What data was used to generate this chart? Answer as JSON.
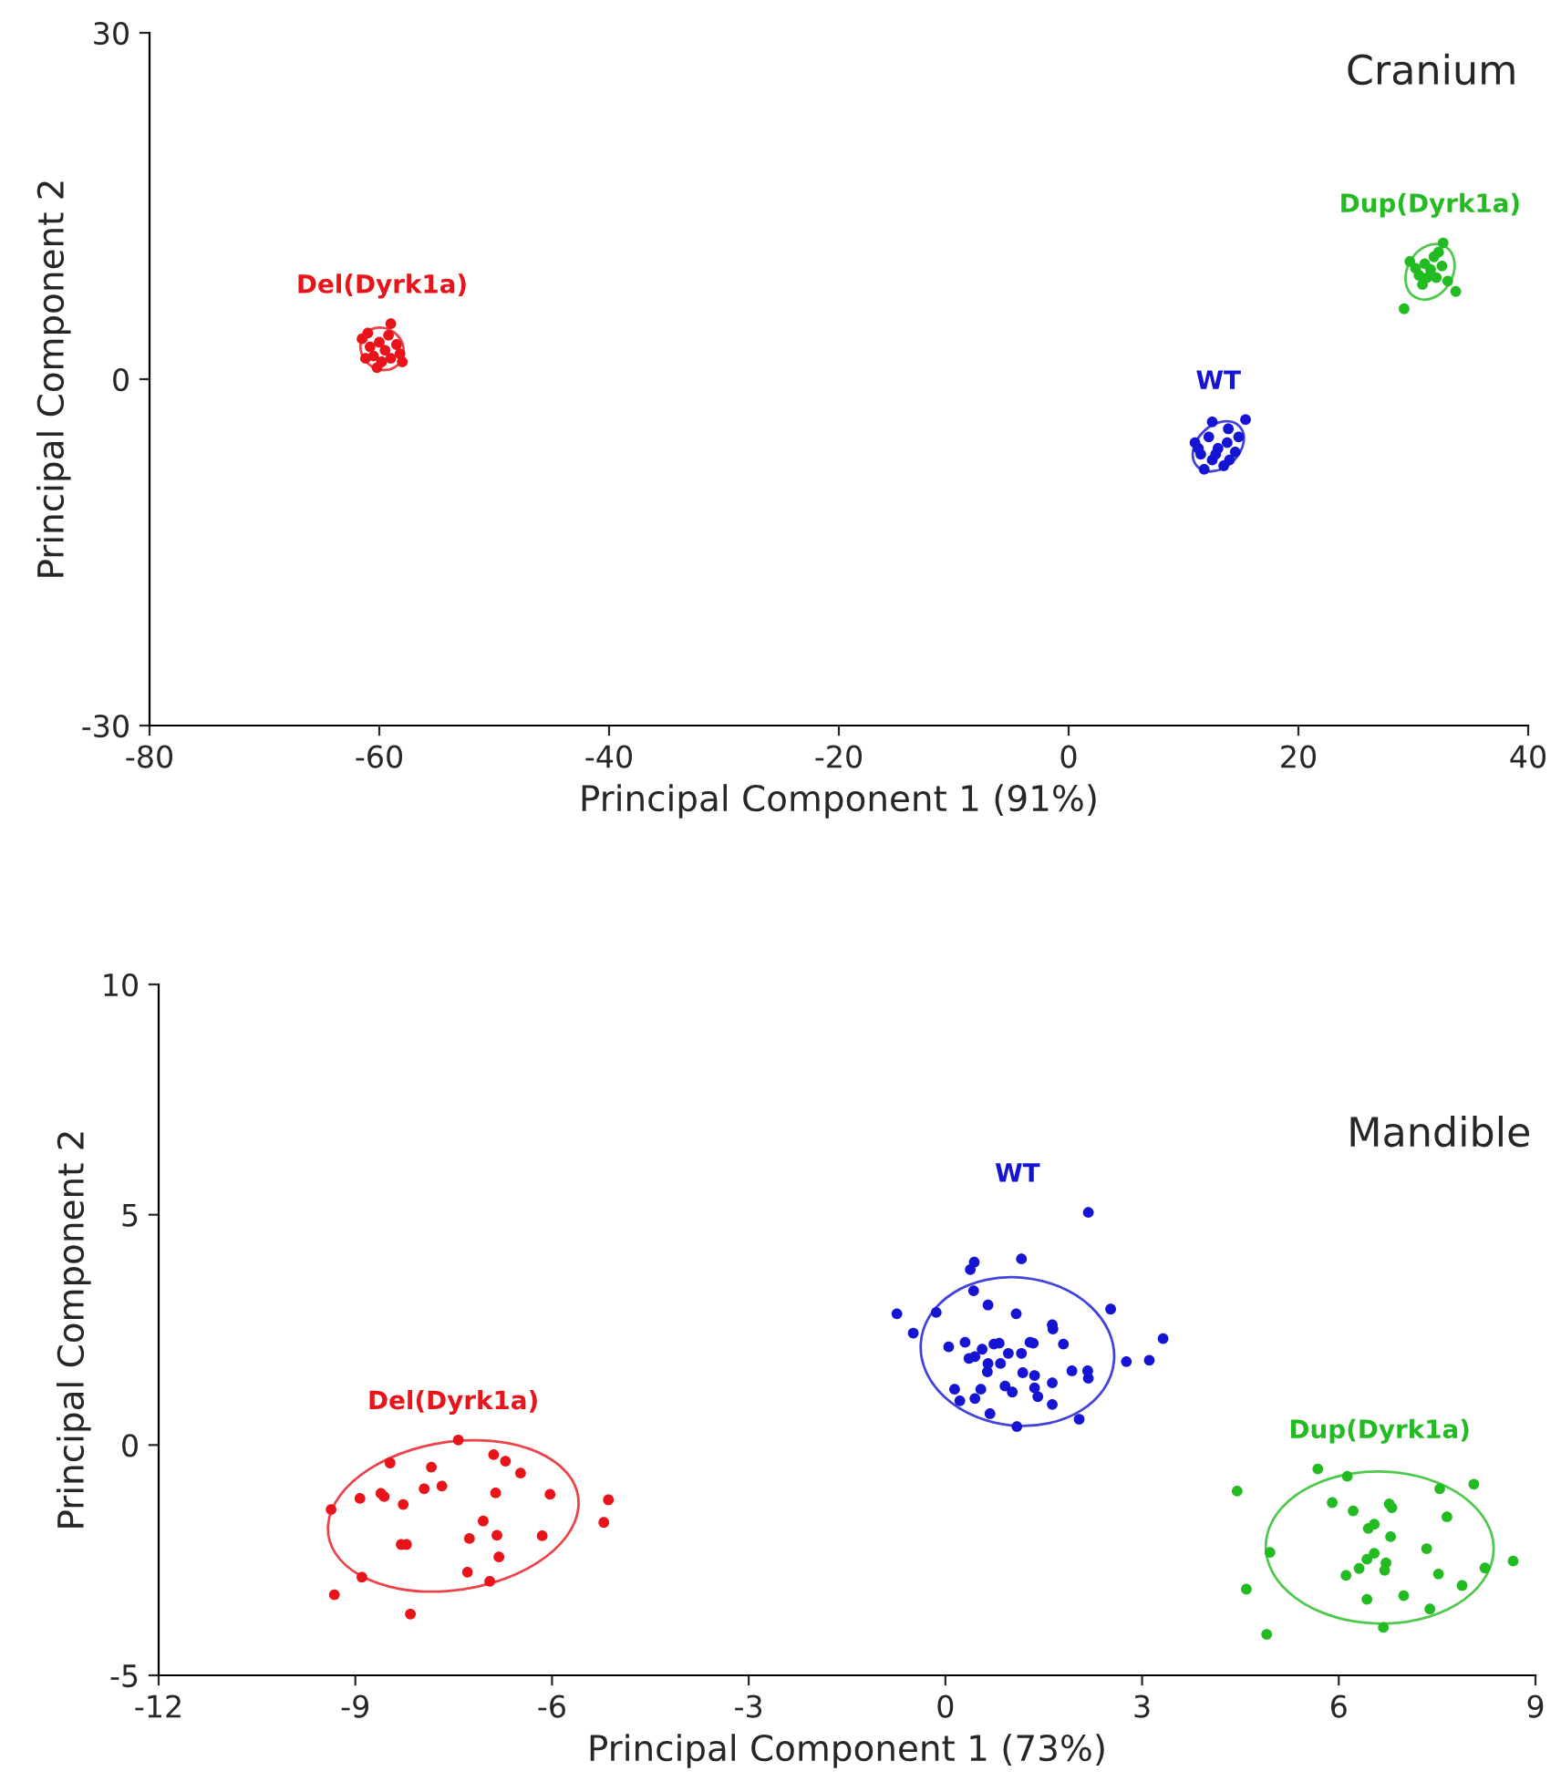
{
  "chart_data": [
    {
      "type": "scatter",
      "title": "Cranium",
      "xlabel": "Principal Component 1 (91%)",
      "ylabel": "Principal Component 2",
      "xlim": [
        -80,
        40
      ],
      "ylim": [
        -30,
        30
      ],
      "xticks": [
        -80,
        -60,
        -40,
        -20,
        0,
        20,
        40
      ],
      "yticks": [
        -30,
        0,
        30
      ],
      "grid": false,
      "legend": false,
      "marker": "circle",
      "series": [
        {
          "color": "#e8141a",
          "x": [
            -61.5,
            -61.0,
            -59.0,
            -60.5,
            -60.0,
            -59.5,
            -59.0,
            -58.5,
            -58.2,
            -60.8,
            -59.8,
            -59.2,
            -58.0,
            -60.2,
            -61.2
          ],
          "values": [
            3.5,
            4.0,
            4.8,
            2.0,
            3.2,
            2.5,
            1.8,
            3.0,
            2.2,
            2.8,
            1.5,
            3.8,
            1.5,
            1.0,
            1.8
          ]
        },
        {
          "color": "#1414d2",
          "x": [
            12.5,
            15.4,
            13.9,
            11.0,
            11.5,
            12.2,
            13.0,
            13.8,
            14.5,
            12.5,
            13.5,
            11.8,
            14.8,
            12.8,
            14.0,
            11.3
          ],
          "values": [
            -3.7,
            -3.5,
            -4.3,
            -5.5,
            -6.5,
            -5.0,
            -6.0,
            -5.5,
            -6.3,
            -7.0,
            -7.5,
            -7.8,
            -5.0,
            -6.5,
            -7.0,
            -6.0
          ]
        },
        {
          "color": "#22bb22",
          "x": [
            29.2,
            32.6,
            33.7,
            29.7,
            31.0,
            30.5,
            31.5,
            32.0,
            30.8,
            32.5,
            31.8,
            30.2,
            33.0,
            31.2,
            32.2
          ],
          "values": [
            6.1,
            11.8,
            7.6,
            10.2,
            10.0,
            9.0,
            9.5,
            8.8,
            8.2,
            9.8,
            10.6,
            9.6,
            8.5,
            8.8,
            11.0
          ]
        }
      ],
      "annotations": [
        "Del(Dyrk1a)",
        "WT",
        "Dup(Dyrk1a)"
      ]
    },
    {
      "type": "scatter",
      "title": "Mandible",
      "xlabel": "Principal Component 1 (73%)",
      "ylabel": "Principal Component 2",
      "xlim": [
        -12,
        9
      ],
      "ylim": [
        -5,
        10
      ],
      "xticks": [
        -12,
        -9,
        -6,
        -3,
        0,
        3,
        6,
        9
      ],
      "yticks": [
        -5,
        0,
        5,
        10
      ],
      "grid": false,
      "legend": false,
      "marker": "circle",
      "series": [
        {
          "color": "#e8141a",
          "x": [
            -7.43,
            -8.47,
            -7.84,
            -6.89,
            -6.71,
            -6.48,
            -8.61,
            -8.56,
            -8.93,
            -7.95,
            -7.68,
            -8.27,
            -6.86,
            -6.03,
            -9.37,
            -7.05,
            -7.26,
            -6.84,
            -6.15,
            -8.3,
            -8.22,
            -6.81,
            -7.29,
            -6.95,
            -8.9,
            -9.32,
            -8.16,
            -5.14,
            -5.21
          ],
          "values": [
            0.11,
            -0.39,
            -0.48,
            -0.21,
            -0.35,
            -0.61,
            -1.05,
            -1.12,
            -1.16,
            -0.95,
            -0.89,
            -1.29,
            -1.04,
            -1.07,
            -1.4,
            -1.65,
            -2.03,
            -1.96,
            -1.97,
            -2.16,
            -2.16,
            -2.43,
            -2.76,
            -2.96,
            -2.87,
            -3.25,
            -3.67,
            -1.19,
            -1.68
          ]
        },
        {
          "color": "#1414d2",
          "x": [
            2.18,
            0.44,
            0.38,
            1.16,
            0.43,
            -0.74,
            -0.14,
            0.65,
            1.08,
            2.52,
            -0.49,
            1.63,
            1.64,
            3.32,
            0.05,
            0.3,
            0.56,
            0.74,
            0.82,
            0.96,
            1.29,
            1.8,
            0.36,
            0.45,
            0.65,
            0.84,
            1.16,
            1.34,
            2.76,
            3.11,
            1.93,
            2.17,
            2.18,
            0.64,
            1.18,
            1.36,
            1.63,
            0.14,
            0.54,
            0.91,
            1.02,
            1.36,
            1.41,
            0.45,
            0.68,
            1.09,
            1.63,
            2.04,
            0.22
          ],
          "values": [
            5.05,
            3.97,
            3.81,
            4.04,
            3.35,
            2.85,
            2.88,
            3.04,
            2.85,
            2.95,
            2.43,
            2.61,
            2.52,
            2.31,
            2.13,
            2.23,
            2.08,
            2.19,
            2.21,
            1.99,
            2.23,
            2.19,
            1.88,
            1.92,
            1.77,
            1.77,
            1.99,
            2.21,
            1.81,
            1.84,
            1.61,
            1.61,
            1.45,
            1.59,
            1.57,
            1.51,
            1.35,
            1.21,
            1.21,
            1.28,
            1.15,
            1.24,
            1.05,
            1.01,
            0.68,
            0.4,
            0.88,
            0.56,
            0.96
          ]
        },
        {
          "color": "#22bb22",
          "x": [
            5.68,
            6.13,
            4.45,
            8.06,
            7.54,
            5.9,
            6.22,
            6.77,
            6.81,
            7.65,
            6.54,
            6.45,
            6.79,
            4.95,
            7.34,
            6.54,
            6.43,
            6.72,
            6.31,
            6.7,
            6.11,
            7.52,
            8.23,
            8.66,
            7.88,
            4.59,
            6.99,
            6.43,
            7.39,
            6.68,
            4.9
          ],
          "values": [
            -0.52,
            -0.68,
            -1.0,
            -0.85,
            -0.95,
            -1.25,
            -1.43,
            -1.28,
            -1.36,
            -1.56,
            -1.72,
            -1.81,
            -1.99,
            -2.33,
            -2.25,
            -2.35,
            -2.48,
            -2.56,
            -2.68,
            -2.72,
            -2.83,
            -2.8,
            -2.67,
            -2.52,
            -3.05,
            -3.13,
            -3.27,
            -3.35,
            -3.56,
            -3.96,
            -4.11
          ]
        }
      ],
      "annotations": [
        "Del(Dyrk1a)",
        "WT",
        "Dup(Dyrk1a)"
      ]
    }
  ]
}
